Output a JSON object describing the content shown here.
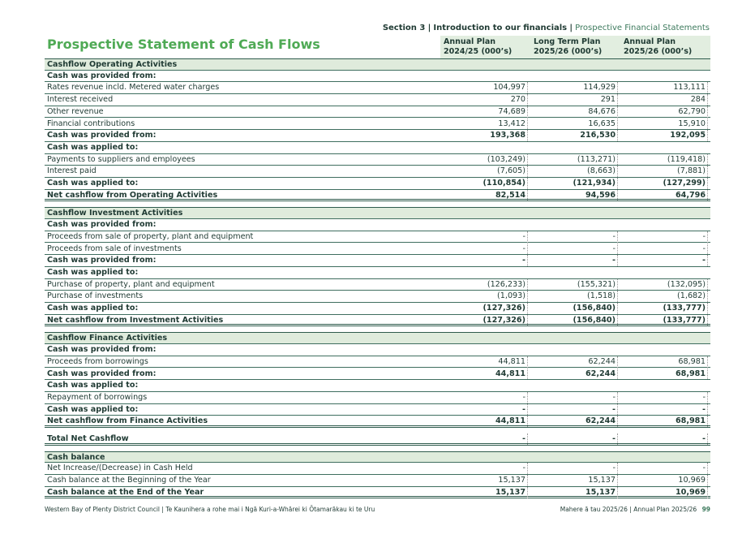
{
  "header": {
    "breadcrumb": [
      "Section 3",
      "Introduction to our financials",
      "Prospective Financial Statements"
    ],
    "separator": "|",
    "title": "Prospective Statement of Cash Flows"
  },
  "columns": [
    {
      "name": "Annual Plan",
      "period": "2024/25 (000’s)"
    },
    {
      "name": "Long Term Plan",
      "period": "2025/26 (000’s)"
    },
    {
      "name": "Annual Plan",
      "period": "2025/26 (000’s)"
    }
  ],
  "blocks": [
    {
      "rows": [
        {
          "kind": "heading",
          "label": "Cashflow Operating Activities"
        },
        {
          "kind": "subheading",
          "label": "Cash was provided from:"
        },
        {
          "kind": "item",
          "label": "Rates revenue incld. Metered water charges",
          "values": [
            "104,997",
            "114,929",
            "113,111"
          ]
        },
        {
          "kind": "item",
          "label": "Interest received",
          "values": [
            "270",
            "291",
            "284"
          ]
        },
        {
          "kind": "item",
          "label": "Other revenue",
          "values": [
            "74,689",
            "84,676",
            "62,790"
          ]
        },
        {
          "kind": "item",
          "label": "Financial contributions",
          "values": [
            "13,412",
            "16,635",
            "15,910"
          ]
        },
        {
          "kind": "subtotal",
          "label": "Cash was provided from:",
          "values": [
            "193,368",
            "216,530",
            "192,095"
          ]
        },
        {
          "kind": "subheading",
          "label": "Cash was applied to:"
        },
        {
          "kind": "item",
          "label": "Payments to suppliers and employees",
          "values": [
            "(103,249)",
            "(113,271)",
            "(119,418)"
          ]
        },
        {
          "kind": "item",
          "label": "Interest paid",
          "values": [
            "(7,605)",
            "(8,663)",
            "(7,881)"
          ]
        },
        {
          "kind": "subtotal",
          "label": "Cash was applied to:",
          "values": [
            "(110,854)",
            "(121,934)",
            "(127,299)"
          ]
        },
        {
          "kind": "total",
          "label": "Net cashflow from Operating Activities",
          "values": [
            "82,514",
            "94,596",
            "64,796"
          ]
        }
      ]
    },
    {
      "rows": [
        {
          "kind": "heading",
          "label": "Cashflow Investment Activities"
        },
        {
          "kind": "subheading",
          "label": "Cash was provided from:"
        },
        {
          "kind": "item",
          "label": "Proceeds from sale of property, plant and equipment",
          "values": [
            "-",
            "-",
            "-"
          ]
        },
        {
          "kind": "item",
          "label": "Proceeds from sale of investments",
          "values": [
            "-",
            "-",
            "-"
          ]
        },
        {
          "kind": "subtotal",
          "label": "Cash was provided from:",
          "values": [
            "-",
            "-",
            "-"
          ]
        },
        {
          "kind": "subheading",
          "label": "Cash was applied to:"
        },
        {
          "kind": "item",
          "label": "Purchase of property, plant and equipment",
          "values": [
            "(126,233)",
            "(155,321)",
            "(132,095)"
          ]
        },
        {
          "kind": "item",
          "label": "Purchase of investments",
          "values": [
            "(1,093)",
            "(1,518)",
            "(1,682)"
          ]
        },
        {
          "kind": "subtotal",
          "label": "Cash was applied to:",
          "values": [
            "(127,326)",
            "(156,840)",
            "(133,777)"
          ]
        },
        {
          "kind": "total",
          "label": "Net cashflow from Investment Activities",
          "values": [
            "(127,326)",
            "(156,840)",
            "(133,777)"
          ]
        }
      ]
    },
    {
      "rows": [
        {
          "kind": "heading",
          "label": "Cashflow Finance Activities"
        },
        {
          "kind": "subheading",
          "label": "Cash was provided from:"
        },
        {
          "kind": "item",
          "label": "Proceeds from borrowings",
          "values": [
            "44,811",
            "62,244",
            "68,981"
          ]
        },
        {
          "kind": "subtotal",
          "label": "Cash was provided from:",
          "values": [
            "44,811",
            "62,244",
            "68,981"
          ]
        },
        {
          "kind": "subheading",
          "label": "Cash was applied to:"
        },
        {
          "kind": "item",
          "label": "Repayment of borrowings",
          "values": [
            "-",
            "-",
            "-"
          ]
        },
        {
          "kind": "subtotal",
          "label": "Cash was applied to:",
          "values": [
            "-",
            "-",
            "-"
          ]
        },
        {
          "kind": "total",
          "label": "Net cashflow from Finance Activities",
          "values": [
            "44,811",
            "62,244",
            "68,981"
          ]
        }
      ]
    },
    {
      "rows": [
        {
          "kind": "total",
          "label": "Total Net Cashflow",
          "values": [
            "-",
            "-",
            "-"
          ]
        }
      ]
    },
    {
      "rows": [
        {
          "kind": "heading",
          "label": "Cash balance"
        },
        {
          "kind": "item",
          "label": "Net Increase/(Decrease) in Cash Held",
          "values": [
            "-",
            "-",
            "-"
          ]
        },
        {
          "kind": "item",
          "label": "Cash balance at the Beginning of the Year",
          "values": [
            "15,137",
            "15,137",
            "10,969"
          ]
        },
        {
          "kind": "total",
          "label": "Cash balance at the End of the Year",
          "values": [
            "15,137",
            "15,137",
            "10,969"
          ]
        }
      ]
    }
  ],
  "footer": {
    "left": [
      "Western Bay of Plenty District Council",
      "Te Kaunihera a rohe mai i Ngā Kuri-a-Whārei ki Ōtamarākau ki te Uru"
    ],
    "right": [
      "Mahere ā tau 2025/26",
      "Annual Plan 2025/26"
    ],
    "page": "99"
  }
}
